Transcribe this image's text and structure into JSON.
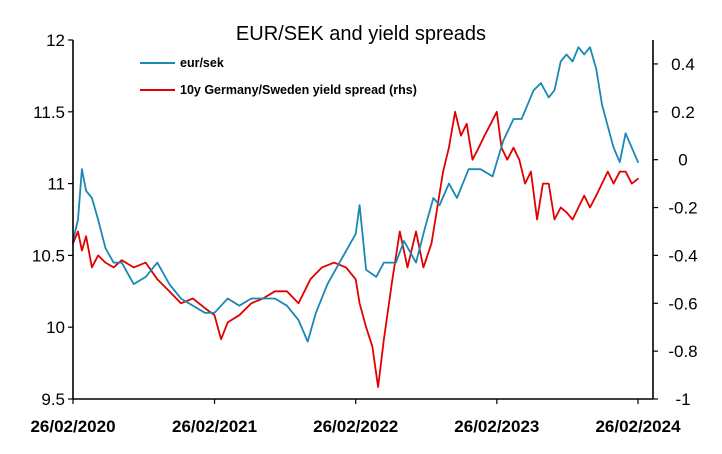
{
  "chart_data": {
    "type": "line",
    "title": "EUR/SEK and yield spreads",
    "x_tick_labels": [
      "26/02/2020",
      "26/02/2021",
      "26/02/2022",
      "26/02/2023",
      "26/02/2024"
    ],
    "x_range": [
      "2020-02-26",
      "2024-02-26"
    ],
    "y_left": {
      "ylim": [
        9.5,
        12
      ],
      "ticks": [
        "9.5",
        "10",
        "10.5",
        "11",
        "11.5",
        "12"
      ]
    },
    "y_right": {
      "ylim": [
        -1,
        0.5
      ],
      "ticks": [
        "-1",
        "-0.8",
        "-0.6",
        "-0.4",
        "-0.2",
        "0",
        "0.2",
        "0.4"
      ]
    },
    "legend_position": "top-left",
    "grid": false,
    "series": [
      {
        "name": "eur/sek",
        "axis": "left",
        "color": "#1a88b5",
        "points": [
          [
            "2020-02-26",
            10.6
          ],
          [
            "2020-03-10",
            10.75
          ],
          [
            "2020-03-20",
            11.1
          ],
          [
            "2020-03-31",
            10.95
          ],
          [
            "2020-04-15",
            10.9
          ],
          [
            "2020-05-01",
            10.75
          ],
          [
            "2020-05-20",
            10.55
          ],
          [
            "2020-06-10",
            10.45
          ],
          [
            "2020-07-01",
            10.45
          ],
          [
            "2020-08-01",
            10.3
          ],
          [
            "2020-09-01",
            10.35
          ],
          [
            "2020-10-01",
            10.45
          ],
          [
            "2020-11-01",
            10.3
          ],
          [
            "2020-12-01",
            10.2
          ],
          [
            "2021-01-01",
            10.15
          ],
          [
            "2021-02-01",
            10.1
          ],
          [
            "2021-02-26",
            10.1
          ],
          [
            "2021-04-01",
            10.2
          ],
          [
            "2021-05-01",
            10.15
          ],
          [
            "2021-06-01",
            10.2
          ],
          [
            "2021-07-01",
            10.2
          ],
          [
            "2021-08-01",
            10.2
          ],
          [
            "2021-09-01",
            10.15
          ],
          [
            "2021-10-01",
            10.05
          ],
          [
            "2021-10-25",
            9.9
          ],
          [
            "2021-11-15",
            10.1
          ],
          [
            "2021-12-15",
            10.3
          ],
          [
            "2022-01-15",
            10.45
          ],
          [
            "2022-02-26",
            10.65
          ],
          [
            "2022-03-08",
            10.85
          ],
          [
            "2022-03-25",
            10.4
          ],
          [
            "2022-04-20",
            10.35
          ],
          [
            "2022-05-10",
            10.45
          ],
          [
            "2022-06-10",
            10.45
          ],
          [
            "2022-07-01",
            10.6
          ],
          [
            "2022-08-01",
            10.45
          ],
          [
            "2022-08-25",
            10.7
          ],
          [
            "2022-09-15",
            10.9
          ],
          [
            "2022-10-01",
            10.85
          ],
          [
            "2022-10-25",
            11.0
          ],
          [
            "2022-11-15",
            10.9
          ],
          [
            "2022-12-15",
            11.1
          ],
          [
            "2023-01-15",
            11.1
          ],
          [
            "2023-02-15",
            11.05
          ],
          [
            "2023-02-26",
            11.15
          ],
          [
            "2023-03-15",
            11.3
          ],
          [
            "2023-04-10",
            11.45
          ],
          [
            "2023-05-01",
            11.45
          ],
          [
            "2023-06-01",
            11.65
          ],
          [
            "2023-06-20",
            11.7
          ],
          [
            "2023-07-10",
            11.6
          ],
          [
            "2023-07-25",
            11.65
          ],
          [
            "2023-08-10",
            11.85
          ],
          [
            "2023-08-25",
            11.9
          ],
          [
            "2023-09-10",
            11.85
          ],
          [
            "2023-09-25",
            11.95
          ],
          [
            "2023-10-10",
            11.9
          ],
          [
            "2023-10-25",
            11.95
          ],
          [
            "2023-11-10",
            11.8
          ],
          [
            "2023-11-25",
            11.55
          ],
          [
            "2023-12-10",
            11.4
          ],
          [
            "2023-12-25",
            11.25
          ],
          [
            "2024-01-10",
            11.15
          ],
          [
            "2024-01-25",
            11.35
          ],
          [
            "2024-02-10",
            11.25
          ],
          [
            "2024-02-26",
            11.15
          ]
        ]
      },
      {
        "name": "10y Germany/Sweden yield spread (rhs)",
        "axis": "right",
        "color": "#e00000",
        "points": [
          [
            "2020-02-26",
            -0.35
          ],
          [
            "2020-03-10",
            -0.3
          ],
          [
            "2020-03-20",
            -0.38
          ],
          [
            "2020-03-31",
            -0.32
          ],
          [
            "2020-04-15",
            -0.45
          ],
          [
            "2020-05-01",
            -0.4
          ],
          [
            "2020-05-20",
            -0.43
          ],
          [
            "2020-06-10",
            -0.45
          ],
          [
            "2020-07-01",
            -0.42
          ],
          [
            "2020-08-01",
            -0.45
          ],
          [
            "2020-09-01",
            -0.43
          ],
          [
            "2020-10-01",
            -0.5
          ],
          [
            "2020-11-01",
            -0.55
          ],
          [
            "2020-12-01",
            -0.6
          ],
          [
            "2021-01-01",
            -0.58
          ],
          [
            "2021-02-01",
            -0.62
          ],
          [
            "2021-02-26",
            -0.65
          ],
          [
            "2021-03-15",
            -0.75
          ],
          [
            "2021-04-01",
            -0.68
          ],
          [
            "2021-05-01",
            -0.65
          ],
          [
            "2021-06-01",
            -0.6
          ],
          [
            "2021-07-01",
            -0.58
          ],
          [
            "2021-08-01",
            -0.55
          ],
          [
            "2021-09-01",
            -0.55
          ],
          [
            "2021-10-01",
            -0.6
          ],
          [
            "2021-11-01",
            -0.5
          ],
          [
            "2021-12-01",
            -0.45
          ],
          [
            "2022-01-01",
            -0.43
          ],
          [
            "2022-02-01",
            -0.45
          ],
          [
            "2022-02-26",
            -0.5
          ],
          [
            "2022-03-08",
            -0.6
          ],
          [
            "2022-03-25",
            -0.7
          ],
          [
            "2022-04-10",
            -0.78
          ],
          [
            "2022-04-25",
            -0.95
          ],
          [
            "2022-05-10",
            -0.75
          ],
          [
            "2022-06-01",
            -0.5
          ],
          [
            "2022-06-20",
            -0.3
          ],
          [
            "2022-07-10",
            -0.45
          ],
          [
            "2022-08-01",
            -0.3
          ],
          [
            "2022-08-20",
            -0.45
          ],
          [
            "2022-09-10",
            -0.35
          ],
          [
            "2022-09-25",
            -0.2
          ],
          [
            "2022-10-10",
            -0.05
          ],
          [
            "2022-10-25",
            0.05
          ],
          [
            "2022-11-10",
            0.2
          ],
          [
            "2022-11-25",
            0.1
          ],
          [
            "2022-12-10",
            0.15
          ],
          [
            "2022-12-25",
            0.0
          ],
          [
            "2023-01-10",
            0.05
          ],
          [
            "2023-01-25",
            0.1
          ],
          [
            "2023-02-10",
            0.15
          ],
          [
            "2023-02-26",
            0.2
          ],
          [
            "2023-03-10",
            0.05
          ],
          [
            "2023-03-25",
            0.0
          ],
          [
            "2023-04-10",
            0.05
          ],
          [
            "2023-04-25",
            0.0
          ],
          [
            "2023-05-10",
            -0.1
          ],
          [
            "2023-05-25",
            -0.05
          ],
          [
            "2023-06-10",
            -0.25
          ],
          [
            "2023-06-25",
            -0.1
          ],
          [
            "2023-07-10",
            -0.1
          ],
          [
            "2023-07-25",
            -0.25
          ],
          [
            "2023-08-10",
            -0.2
          ],
          [
            "2023-08-25",
            -0.22
          ],
          [
            "2023-09-10",
            -0.25
          ],
          [
            "2023-09-25",
            -0.2
          ],
          [
            "2023-10-10",
            -0.15
          ],
          [
            "2023-10-25",
            -0.2
          ],
          [
            "2023-11-10",
            -0.15
          ],
          [
            "2023-11-25",
            -0.1
          ],
          [
            "2023-12-10",
            -0.05
          ],
          [
            "2023-12-25",
            -0.1
          ],
          [
            "2024-01-10",
            -0.05
          ],
          [
            "2024-01-25",
            -0.05
          ],
          [
            "2024-02-10",
            -0.1
          ],
          [
            "2024-02-26",
            -0.08
          ]
        ]
      }
    ]
  }
}
